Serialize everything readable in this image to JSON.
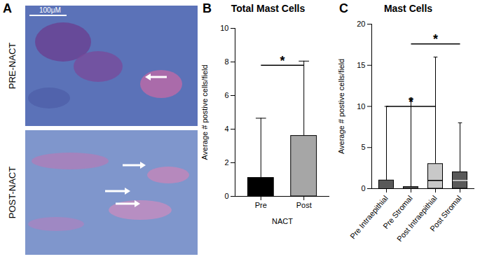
{
  "chart_data": [
    {
      "type": "image",
      "panel": "A",
      "rows": [
        "PRE-NACT",
        "POST-NACT"
      ],
      "scale_bar": "100μM"
    },
    {
      "type": "bar",
      "panel": "B",
      "title": "Total Mast Cells",
      "x_label": "NACT",
      "y_label": "Average # postive cells/field",
      "categories": [
        "Pre",
        "Post"
      ],
      "values": [
        1.1,
        3.6
      ],
      "error_upper": [
        4.65,
        8.05
      ],
      "colors": [
        "#000000",
        "#a6a6a6"
      ],
      "ylim": [
        0,
        10
      ],
      "yticks": [
        0,
        2,
        4,
        6,
        8,
        10
      ],
      "annotations": [
        {
          "text": "*",
          "from": "Pre",
          "to": "Post",
          "y": 7.8
        }
      ]
    },
    {
      "type": "box",
      "panel": "C",
      "title": "Mast Cells",
      "y_label": "Average # postive cells/field",
      "categories": [
        "Pre Intraepithial",
        "Pre Stromal",
        "Post Intraepithial",
        "Post Stromal"
      ],
      "min": [
        0,
        0,
        0,
        0
      ],
      "q1": [
        0,
        0,
        0,
        0
      ],
      "median": [
        0,
        0,
        1,
        1
      ],
      "q3": [
        1,
        0.2,
        3,
        2
      ],
      "max": [
        10,
        11,
        16,
        8
      ],
      "colors": [
        "#595959",
        "#404040",
        "#c8c8c8",
        "#595959"
      ],
      "ylim": [
        0,
        20
      ],
      "yticks": [
        0,
        5,
        10,
        15,
        20
      ],
      "annotations": [
        {
          "text": "*",
          "from": "Pre Intraepithial",
          "to": "Post Intraepithial",
          "y": 10
        },
        {
          "text": "*",
          "from": "Pre Stromal",
          "to": "Post Stromal",
          "y": 17.6
        }
      ]
    }
  ]
}
